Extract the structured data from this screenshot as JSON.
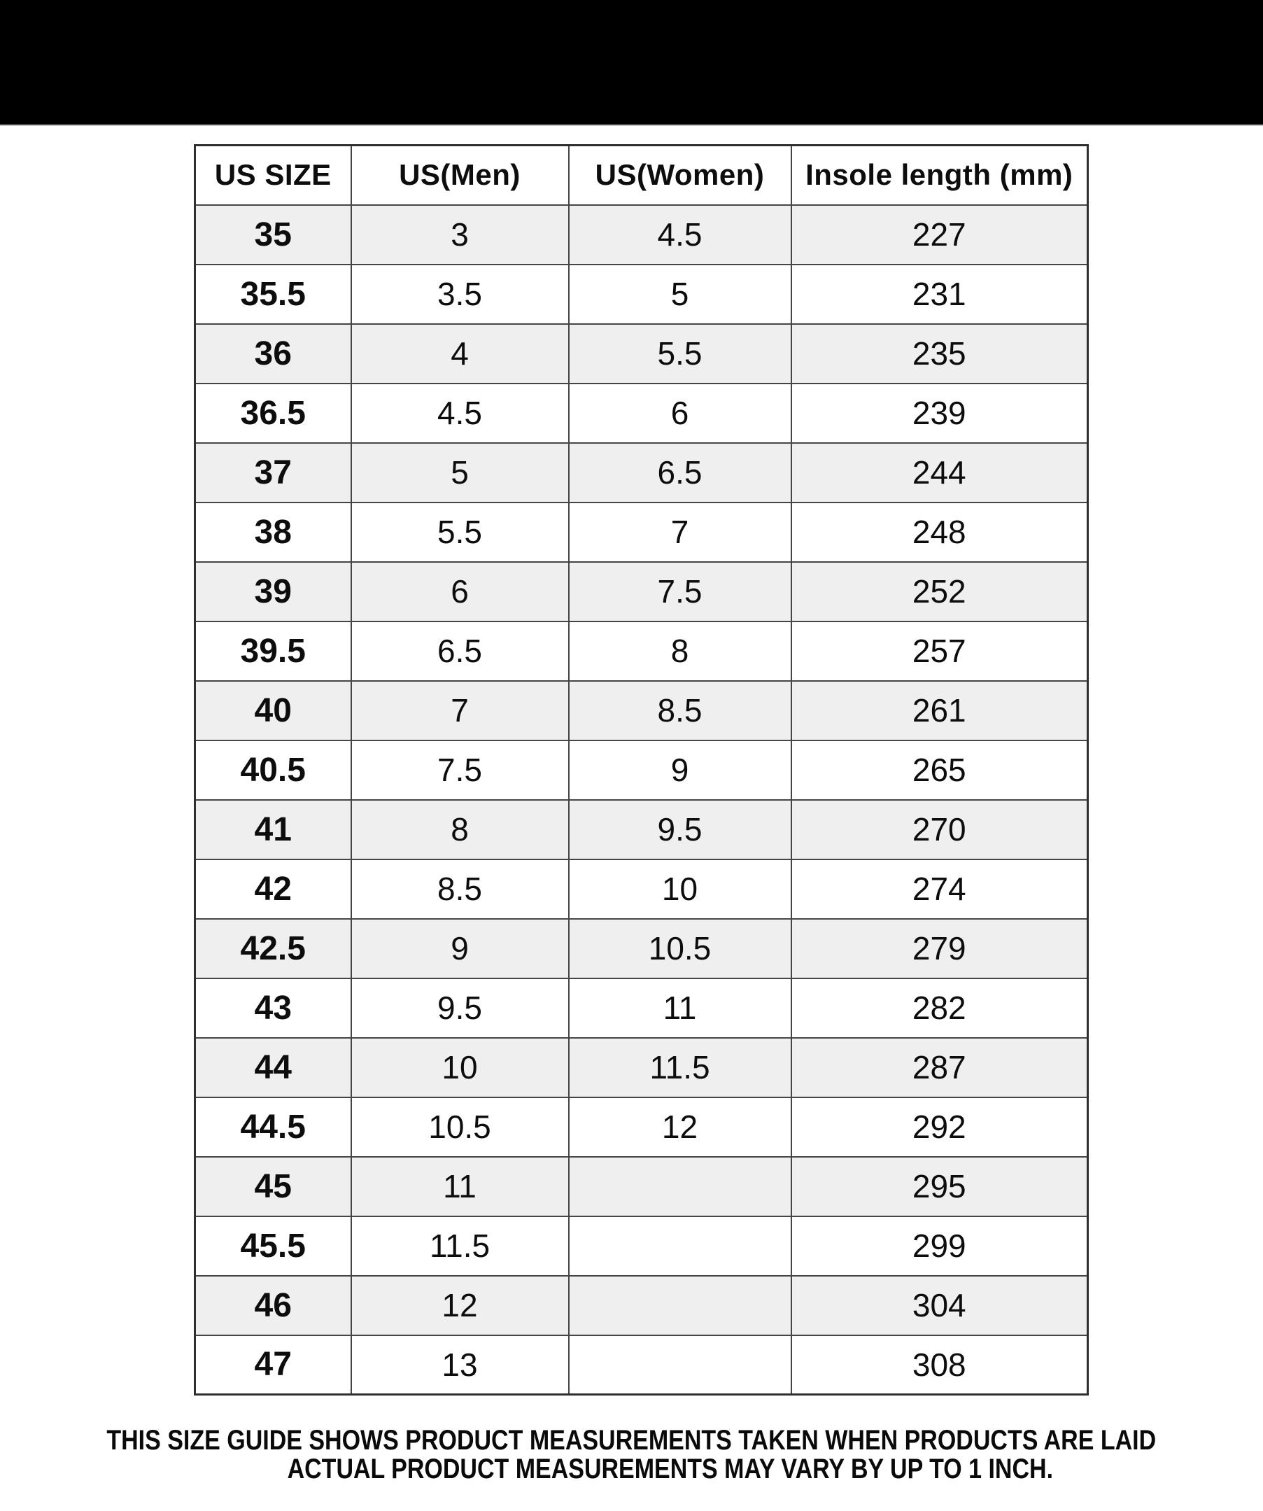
{
  "banner": {
    "background_color": "#000000"
  },
  "table": {
    "column_headers": [
      "US SIZE",
      "US(Men)",
      "US(Women)",
      "Insole length (mm)"
    ],
    "rows": [
      [
        "35",
        "3",
        "4.5",
        "227"
      ],
      [
        "35.5",
        "3.5",
        "5",
        "231"
      ],
      [
        "36",
        "4",
        "5.5",
        "235"
      ],
      [
        "36.5",
        "4.5",
        "6",
        "239"
      ],
      [
        "37",
        "5",
        "6.5",
        "244"
      ],
      [
        "38",
        "5.5",
        "7",
        "248"
      ],
      [
        "39",
        "6",
        "7.5",
        "252"
      ],
      [
        "39.5",
        "6.5",
        "8",
        "257"
      ],
      [
        "40",
        "7",
        "8.5",
        "261"
      ],
      [
        "40.5",
        "7.5",
        "9",
        "265"
      ],
      [
        "41",
        "8",
        "9.5",
        "270"
      ],
      [
        "42",
        "8.5",
        "10",
        "274"
      ],
      [
        "42.5",
        "9",
        "10.5",
        "279"
      ],
      [
        "43",
        "9.5",
        "11",
        "282"
      ],
      [
        "44",
        "10",
        "11.5",
        "287"
      ],
      [
        "44.5",
        "10.5",
        "12",
        "292"
      ],
      [
        "45",
        "11",
        "",
        "295"
      ],
      [
        "45.5",
        "11.5",
        "",
        "299"
      ],
      [
        "46",
        "12",
        "",
        "304"
      ],
      [
        "47",
        "13",
        "",
        "308"
      ]
    ],
    "colors": {
      "alt_row_background": "#efefef",
      "border": "#454545",
      "text": "#0d0d0d"
    }
  },
  "disclaimer": {
    "line1": "THIS SIZE GUIDE SHOWS PRODUCT MEASUREMENTS TAKEN WHEN PRODUCTS ARE LAID",
    "line2": "ACTUAL PRODUCT MEASUREMENTS MAY VARY BY UP TO 1 INCH."
  }
}
